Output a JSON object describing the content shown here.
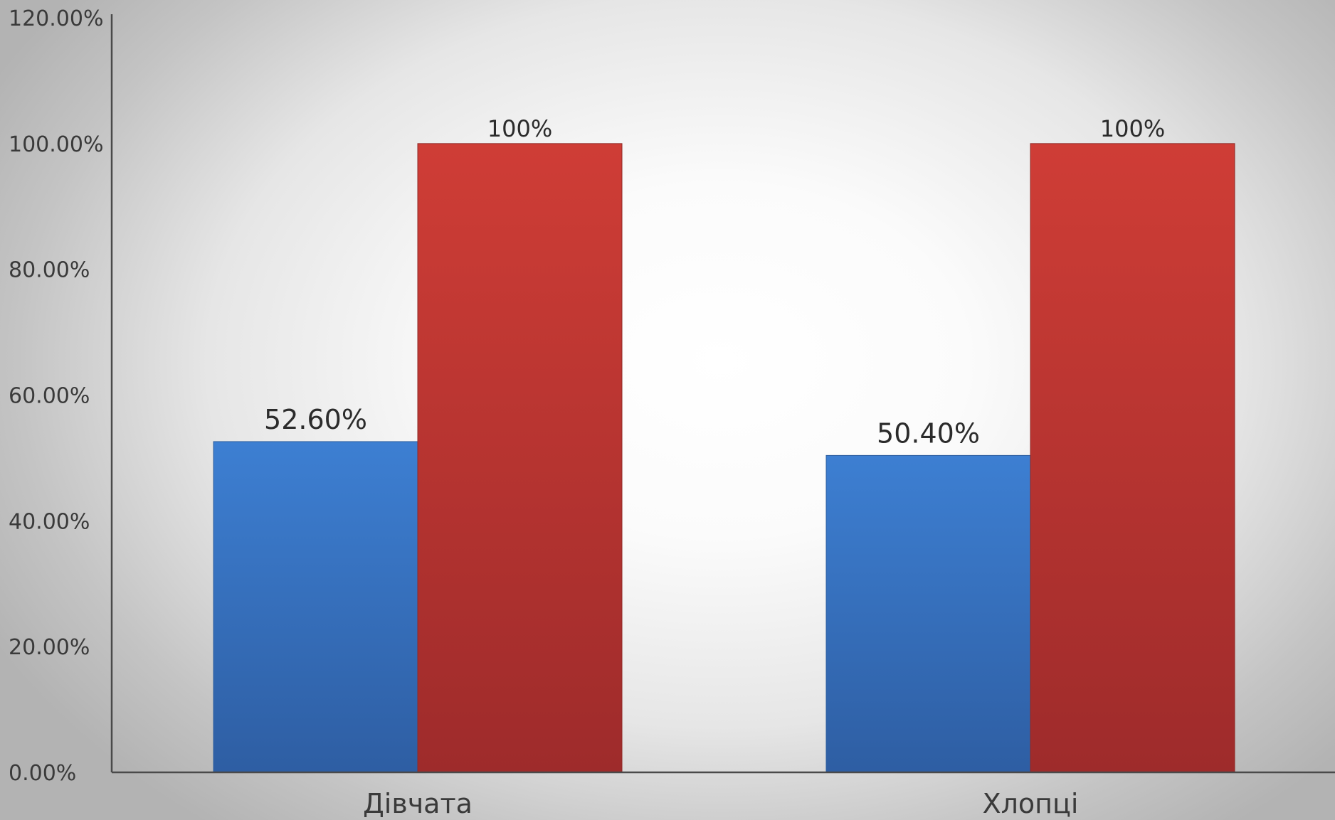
{
  "chart_data": {
    "type": "bar",
    "categories": [
      "Дівчата",
      "Хлопці"
    ],
    "series": [
      {
        "color": "#3a78c9",
        "values": [
          52.6,
          50.4
        ],
        "data_labels": [
          "52.60%",
          "50.40%"
        ]
      },
      {
        "color": "#c33b35",
        "values": [
          100,
          100
        ],
        "data_labels": [
          "100%",
          "100%"
        ]
      }
    ],
    "ylim": [
      0,
      120
    ],
    "yticks": [
      0,
      20,
      40,
      60,
      80,
      100,
      120
    ],
    "ytick_labels": [
      "0.00%",
      "20.00%",
      "40.00%",
      "60.00%",
      "80.00%",
      "100.00%",
      "120.00%"
    ],
    "grid": false,
    "legend": "none",
    "title": "",
    "xlabel": "",
    "ylabel": ""
  }
}
